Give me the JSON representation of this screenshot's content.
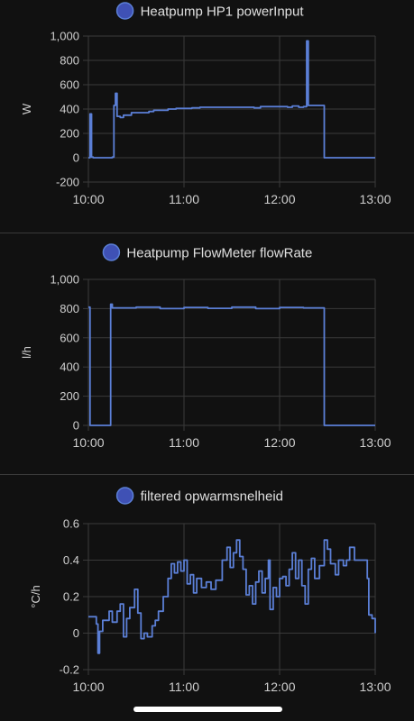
{
  "theme": {
    "background": "#111111",
    "line_color": "#5b7fd6",
    "legend_fill": "#3f51b5",
    "grid_color": "#3a3a3a",
    "axis_text_color": "#cfcfcf",
    "title_color": "#e0e0e0"
  },
  "chart_data": [
    {
      "type": "line",
      "title": "Heatpump HP1 powerInput",
      "ylabel": "W",
      "xlabel": "",
      "ylim": [
        -200,
        1000
      ],
      "yticks": [
        -200,
        0,
        200,
        400,
        600,
        800,
        1000
      ],
      "ytick_labels": [
        "-200",
        "0",
        "200",
        "400",
        "600",
        "800",
        "1,000"
      ],
      "xlim": [
        "10:00",
        "13:00"
      ],
      "xticks": [
        "10:00",
        "11:00",
        "12:00",
        "13:00"
      ],
      "grid": true,
      "legend": "top-center",
      "series": [
        {
          "name": "Heatpump HP1 powerInput",
          "step": true,
          "points": [
            [
              "10:00",
              0
            ],
            [
              "10:01",
              360
            ],
            [
              "10:02",
              5
            ],
            [
              "10:03",
              0
            ],
            [
              "10:14",
              0
            ],
            [
              "10:15",
              5
            ],
            [
              "10:16",
              430
            ],
            [
              "10:17",
              530
            ],
            [
              "10:18",
              340
            ],
            [
              "10:20",
              330
            ],
            [
              "10:22",
              350
            ],
            [
              "10:27",
              370
            ],
            [
              "10:38",
              380
            ],
            [
              "10:41",
              390
            ],
            [
              "10:50",
              400
            ],
            [
              "10:55",
              405
            ],
            [
              "11:00",
              405
            ],
            [
              "11:05",
              410
            ],
            [
              "11:10",
              415
            ],
            [
              "11:40",
              415
            ],
            [
              "11:44",
              410
            ],
            [
              "11:48",
              420
            ],
            [
              "11:52",
              420
            ],
            [
              "12:00",
              420
            ],
            [
              "12:05",
              415
            ],
            [
              "12:08",
              425
            ],
            [
              "12:12",
              415
            ],
            [
              "12:15",
              420
            ],
            [
              "12:16",
              420
            ],
            [
              "12:17",
              960
            ],
            [
              "12:18",
              430
            ],
            [
              "12:25",
              430
            ],
            [
              "12:28",
              0
            ],
            [
              "13:00",
              0
            ]
          ]
        }
      ]
    },
    {
      "type": "line",
      "title": "Heatpump FlowMeter flowRate",
      "ylabel": "l/h",
      "xlabel": "",
      "ylim": [
        0,
        1000
      ],
      "yticks": [
        0,
        200,
        400,
        600,
        800,
        1000
      ],
      "ytick_labels": [
        "0",
        "200",
        "400",
        "600",
        "800",
        "1,000"
      ],
      "xlim": [
        "10:00",
        "13:00"
      ],
      "xticks": [
        "10:00",
        "11:00",
        "12:00",
        "13:00"
      ],
      "grid": true,
      "legend": "top-center",
      "series": [
        {
          "name": "Heatpump FlowMeter flowRate",
          "step": true,
          "points": [
            [
              "10:00",
              810
            ],
            [
              "10:01",
              0
            ],
            [
              "10:13",
              0
            ],
            [
              "10:14",
              830
            ],
            [
              "10:15",
              805
            ],
            [
              "10:30",
              810
            ],
            [
              "10:45",
              800
            ],
            [
              "11:00",
              808
            ],
            [
              "11:15",
              802
            ],
            [
              "11:30",
              810
            ],
            [
              "11:45",
              800
            ],
            [
              "12:00",
              808
            ],
            [
              "12:15",
              805
            ],
            [
              "12:27",
              805
            ],
            [
              "12:28",
              0
            ],
            [
              "13:00",
              0
            ]
          ]
        }
      ]
    },
    {
      "type": "line",
      "title": "filtered opwarmsnelheid",
      "ylabel": "°C/h",
      "xlabel": "",
      "ylim": [
        -0.2,
        0.6
      ],
      "yticks": [
        -0.2,
        0,
        0.2,
        0.4,
        0.6
      ],
      "ytick_labels": [
        "-0.2",
        "0",
        "0.2",
        "0.4",
        "0.6"
      ],
      "xlim": [
        "10:00",
        "13:00"
      ],
      "xticks": [
        "10:00",
        "11:00",
        "12:00",
        "13:00"
      ],
      "grid": true,
      "legend": "top-center",
      "series": [
        {
          "name": "filtered opwarmsnelheid",
          "step": true,
          "points": [
            [
              "10:00",
              0.09
            ],
            [
              "10:05",
              0.05
            ],
            [
              "10:06",
              -0.11
            ],
            [
              "10:07",
              0.01
            ],
            [
              "10:09",
              0.07
            ],
            [
              "10:13",
              0.12
            ],
            [
              "10:15",
              0.06
            ],
            [
              "10:18",
              0.12
            ],
            [
              "10:20",
              0.16
            ],
            [
              "10:22",
              -0.02
            ],
            [
              "10:24",
              0.08
            ],
            [
              "10:26",
              0.14
            ],
            [
              "10:29",
              0.24
            ],
            [
              "10:31",
              0.11
            ],
            [
              "10:33",
              -0.03
            ],
            [
              "10:35",
              0.0
            ],
            [
              "10:37",
              -0.02
            ],
            [
              "10:40",
              0.04
            ],
            [
              "10:42",
              0.07
            ],
            [
              "10:44",
              0.12
            ],
            [
              "10:47",
              0.2
            ],
            [
              "10:50",
              0.3
            ],
            [
              "10:52",
              0.38
            ],
            [
              "10:54",
              0.33
            ],
            [
              "10:56",
              0.39
            ],
            [
              "10:58",
              0.34
            ],
            [
              "11:00",
              0.4
            ],
            [
              "11:02",
              0.27
            ],
            [
              "11:04",
              0.32
            ],
            [
              "11:06",
              0.22
            ],
            [
              "11:08",
              0.3
            ],
            [
              "11:11",
              0.25
            ],
            [
              "11:14",
              0.28
            ],
            [
              "11:17",
              0.24
            ],
            [
              "11:20",
              0.29
            ],
            [
              "11:24",
              0.4
            ],
            [
              "11:27",
              0.47
            ],
            [
              "11:29",
              0.36
            ],
            [
              "11:31",
              0.44
            ],
            [
              "11:33",
              0.51
            ],
            [
              "11:35",
              0.42
            ],
            [
              "11:37",
              0.35
            ],
            [
              "11:39",
              0.21
            ],
            [
              "11:41",
              0.26
            ],
            [
              "11:43",
              0.16
            ],
            [
              "11:45",
              0.28
            ],
            [
              "11:47",
              0.34
            ],
            [
              "11:49",
              0.22
            ],
            [
              "11:51",
              0.3
            ],
            [
              "11:53",
              0.4
            ],
            [
              "11:54",
              0.13
            ],
            [
              "11:56",
              0.25
            ],
            [
              "11:58",
              0.2
            ],
            [
              "12:00",
              0.3
            ],
            [
              "12:02",
              0.31
            ],
            [
              "12:04",
              0.26
            ],
            [
              "12:06",
              0.35
            ],
            [
              "12:08",
              0.44
            ],
            [
              "12:10",
              0.3
            ],
            [
              "12:12",
              0.4
            ],
            [
              "12:14",
              0.26
            ],
            [
              "12:16",
              0.16
            ],
            [
              "12:18",
              0.35
            ],
            [
              "12:20",
              0.41
            ],
            [
              "12:22",
              0.3
            ],
            [
              "12:25",
              0.37
            ],
            [
              "12:28",
              0.51
            ],
            [
              "12:30",
              0.46
            ],
            [
              "12:32",
              0.38
            ],
            [
              "12:35",
              0.32
            ],
            [
              "12:37",
              0.4
            ],
            [
              "12:40",
              0.37
            ],
            [
              "12:42",
              0.4
            ],
            [
              "12:44",
              0.47
            ],
            [
              "12:47",
              0.4
            ],
            [
              "12:55",
              0.3
            ],
            [
              "12:56",
              0.1
            ],
            [
              "12:58",
              0.08
            ],
            [
              "13:00",
              0.0
            ]
          ]
        }
      ]
    }
  ]
}
